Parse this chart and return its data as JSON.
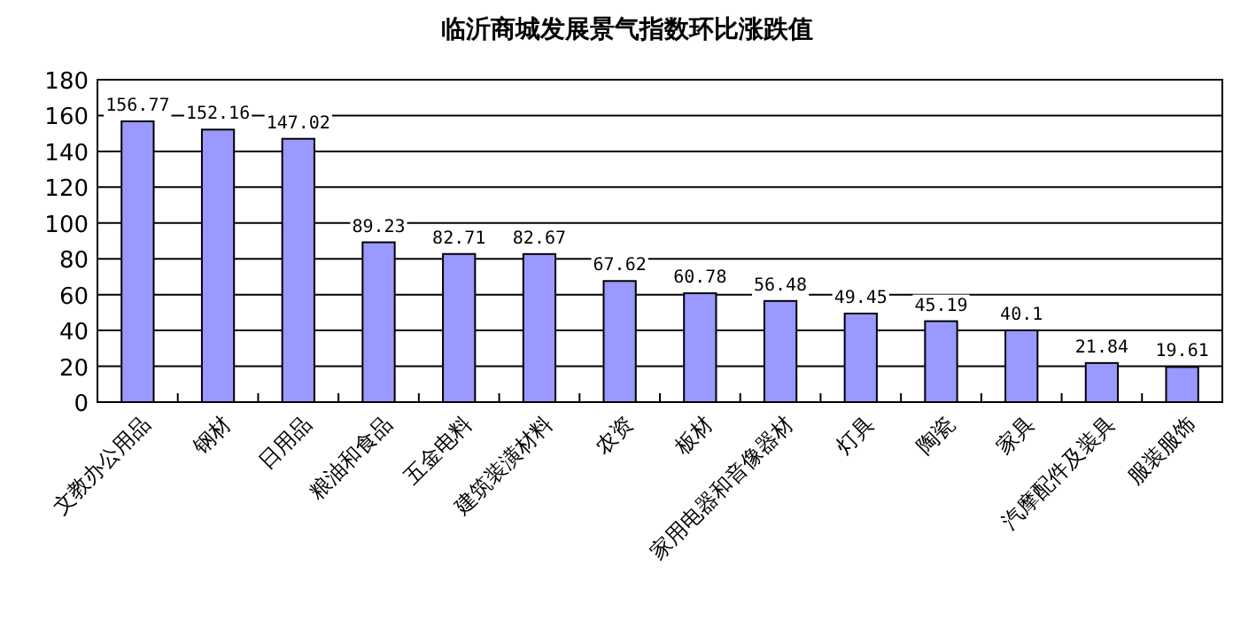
{
  "chart_data": {
    "type": "bar",
    "title": "临沂商城发展景气指数环比涨跌值",
    "categories": [
      "文教办公用品",
      "钢材",
      "日用品",
      "粮油和食品",
      "五金电料",
      "建筑装潢材料",
      "农资",
      "板材",
      "家用电器和音像器材",
      "灯具",
      "陶瓷",
      "家具",
      "汽摩配件及装具",
      "服装服饰"
    ],
    "values": [
      156.77,
      152.16,
      147.02,
      89.23,
      82.71,
      82.67,
      67.62,
      60.78,
      56.48,
      49.45,
      45.19,
      40.1,
      21.84,
      19.61
    ],
    "color": "#9999ff",
    "ylim": [
      0,
      180
    ],
    "yticks": [
      0,
      20,
      40,
      60,
      80,
      100,
      120,
      140,
      160,
      180
    ],
    "grid": "y",
    "data_labels": true
  }
}
